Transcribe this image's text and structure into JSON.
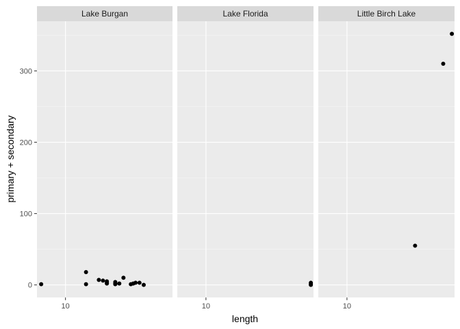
{
  "chart_data": {
    "type": "scatter",
    "xlabel": "length",
    "ylabel": "primary + secondary",
    "x_scale": "log10",
    "x_ticks": [
      10
    ],
    "y_ticks": [
      0,
      100,
      200,
      300
    ],
    "y_tick_labels": [
      "0",
      "100",
      "200",
      "300"
    ],
    "x_tick_labels": [
      "10"
    ],
    "xlim": [
      6.8,
      42.5
    ],
    "ylim": [
      -17.6,
      369.6
    ],
    "grid": true,
    "facets": [
      {
        "label": "Lake Burgan",
        "points": [
          {
            "x": 7.2,
            "y": 1
          },
          {
            "x": 13.2,
            "y": 18
          },
          {
            "x": 13.2,
            "y": 1
          },
          {
            "x": 15.7,
            "y": 7
          },
          {
            "x": 16.6,
            "y": 6
          },
          {
            "x": 17.5,
            "y": 5
          },
          {
            "x": 17.5,
            "y": 3
          },
          {
            "x": 17.5,
            "y": 2
          },
          {
            "x": 19.6,
            "y": 4
          },
          {
            "x": 19.6,
            "y": 2
          },
          {
            "x": 19.6,
            "y": 1
          },
          {
            "x": 20.7,
            "y": 2
          },
          {
            "x": 21.9,
            "y": 10
          },
          {
            "x": 24.2,
            "y": 1
          },
          {
            "x": 25.0,
            "y": 2
          },
          {
            "x": 25.8,
            "y": 3
          },
          {
            "x": 27.2,
            "y": 3
          },
          {
            "x": 28.8,
            "y": 0
          }
        ]
      },
      {
        "label": "Lake Florida",
        "points": [
          {
            "x": 41.0,
            "y": 3
          },
          {
            "x": 41.0,
            "y": 1
          },
          {
            "x": 41.0,
            "y": 0
          }
        ]
      },
      {
        "label": "Little Birch Lake",
        "points": [
          {
            "x": 25.0,
            "y": 55
          },
          {
            "x": 36.5,
            "y": 310
          },
          {
            "x": 41.0,
            "y": 352
          }
        ]
      }
    ]
  }
}
